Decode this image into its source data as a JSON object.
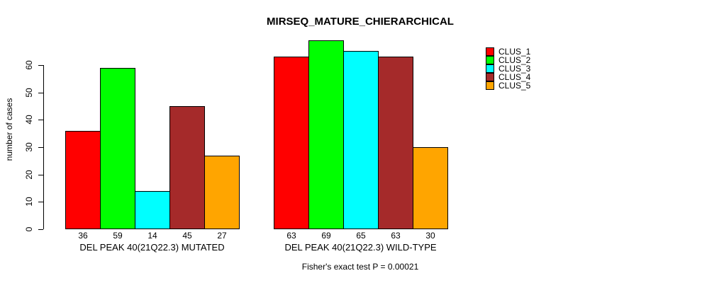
{
  "chart_data": {
    "type": "bar",
    "title": "MIRSEQ_MATURE_CHIERARCHICAL",
    "ylabel": "number of cases",
    "xlabel": "",
    "annotation": "Fisher's exact test P = 0.00021",
    "categories": [
      "DEL PEAK 40(21Q22.3) MUTATED",
      "DEL PEAK 40(21Q22.3) WILD-TYPE"
    ],
    "series": [
      {
        "name": "CLUS_1",
        "color": "#FF0000",
        "values": [
          36,
          63
        ]
      },
      {
        "name": "CLUS_2",
        "color": "#00FF00",
        "values": [
          59,
          69
        ]
      },
      {
        "name": "CLUS_3",
        "color": "#00FFFF",
        "values": [
          14,
          65
        ]
      },
      {
        "name": "CLUS_4",
        "color": "#A52A2A",
        "values": [
          45,
          63
        ]
      },
      {
        "name": "CLUS_5",
        "color": "#FFA500",
        "values": [
          27,
          30
        ]
      }
    ],
    "yticks": [
      0,
      10,
      20,
      30,
      40,
      50,
      60
    ],
    "ylim": [
      0,
      60
    ],
    "bar_value_labels": true,
    "legend_position": "right",
    "grid": false,
    "axis_color": "#000000",
    "text_color": "#000000",
    "background_color": "#ffffff"
  }
}
